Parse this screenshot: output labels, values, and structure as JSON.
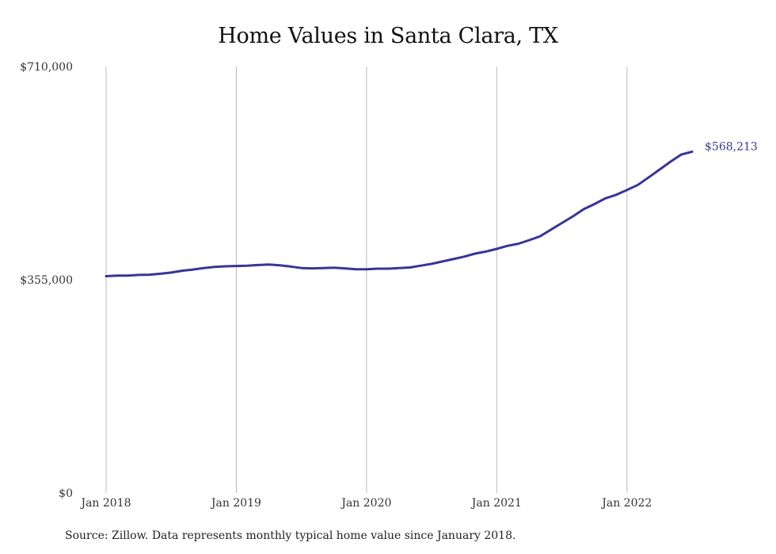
{
  "chart_data": {
    "type": "line",
    "title": "Home Values in Santa Clara, TX",
    "xlabel": "",
    "ylabel": "",
    "ylim": [
      0,
      710000
    ],
    "yticks": [
      0,
      355000,
      710000
    ],
    "ytick_labels": [
      "$0",
      "$355,000",
      "$710,000"
    ],
    "xticks": [
      "2018-01",
      "2019-01",
      "2020-01",
      "2021-01",
      "2022-01"
    ],
    "xtick_labels": [
      "Jan 2018",
      "Jan 2019",
      "Jan 2020",
      "Jan 2021",
      "Jan 2022"
    ],
    "x_range": [
      "2018-01",
      "2022-07"
    ],
    "grid": "vertical",
    "legend": "none",
    "colors": {
      "line": "#3a3596",
      "grid": "#bbbbbb"
    },
    "end_label": "$568,213",
    "series": [
      {
        "x": [
          "2018-01",
          "2018-02",
          "2018-03",
          "2018-04",
          "2018-05",
          "2018-06",
          "2018-07",
          "2018-08",
          "2018-09",
          "2018-10",
          "2018-11",
          "2018-12",
          "2019-01",
          "2019-02",
          "2019-03",
          "2019-04",
          "2019-05",
          "2019-06",
          "2019-07",
          "2019-08",
          "2019-09",
          "2019-10",
          "2019-11",
          "2019-12",
          "2020-01",
          "2020-02",
          "2020-03",
          "2020-04",
          "2020-05",
          "2020-06",
          "2020-07",
          "2020-08",
          "2020-09",
          "2020-10",
          "2020-11",
          "2020-12",
          "2021-01",
          "2021-02",
          "2021-03",
          "2021-04",
          "2021-05",
          "2021-06",
          "2021-07",
          "2021-08",
          "2021-09",
          "2021-10",
          "2021-11",
          "2021-12",
          "2022-01",
          "2022-02",
          "2022-03",
          "2022-04",
          "2022-05",
          "2022-06",
          "2022-07"
        ],
        "values": [
          361000,
          362000,
          362000,
          363000,
          363500,
          365000,
          367000,
          370000,
          372000,
          374500,
          376500,
          377500,
          378000,
          378500,
          379500,
          380500,
          379000,
          377000,
          374500,
          374000,
          374500,
          375000,
          374000,
          372500,
          372500,
          373500,
          373500,
          374500,
          375500,
          378500,
          381500,
          385500,
          389500,
          393500,
          398500,
          402000,
          406500,
          411500,
          415000,
          421000,
          427500,
          438500,
          449500,
          460500,
          472500,
          481000,
          490500,
          496500,
          504500,
          513000,
          525500,
          538500,
          551500,
          563500,
          568213
        ]
      }
    ],
    "source_note": "Source: Zillow. Data represents monthly typical home value since January 2018."
  }
}
